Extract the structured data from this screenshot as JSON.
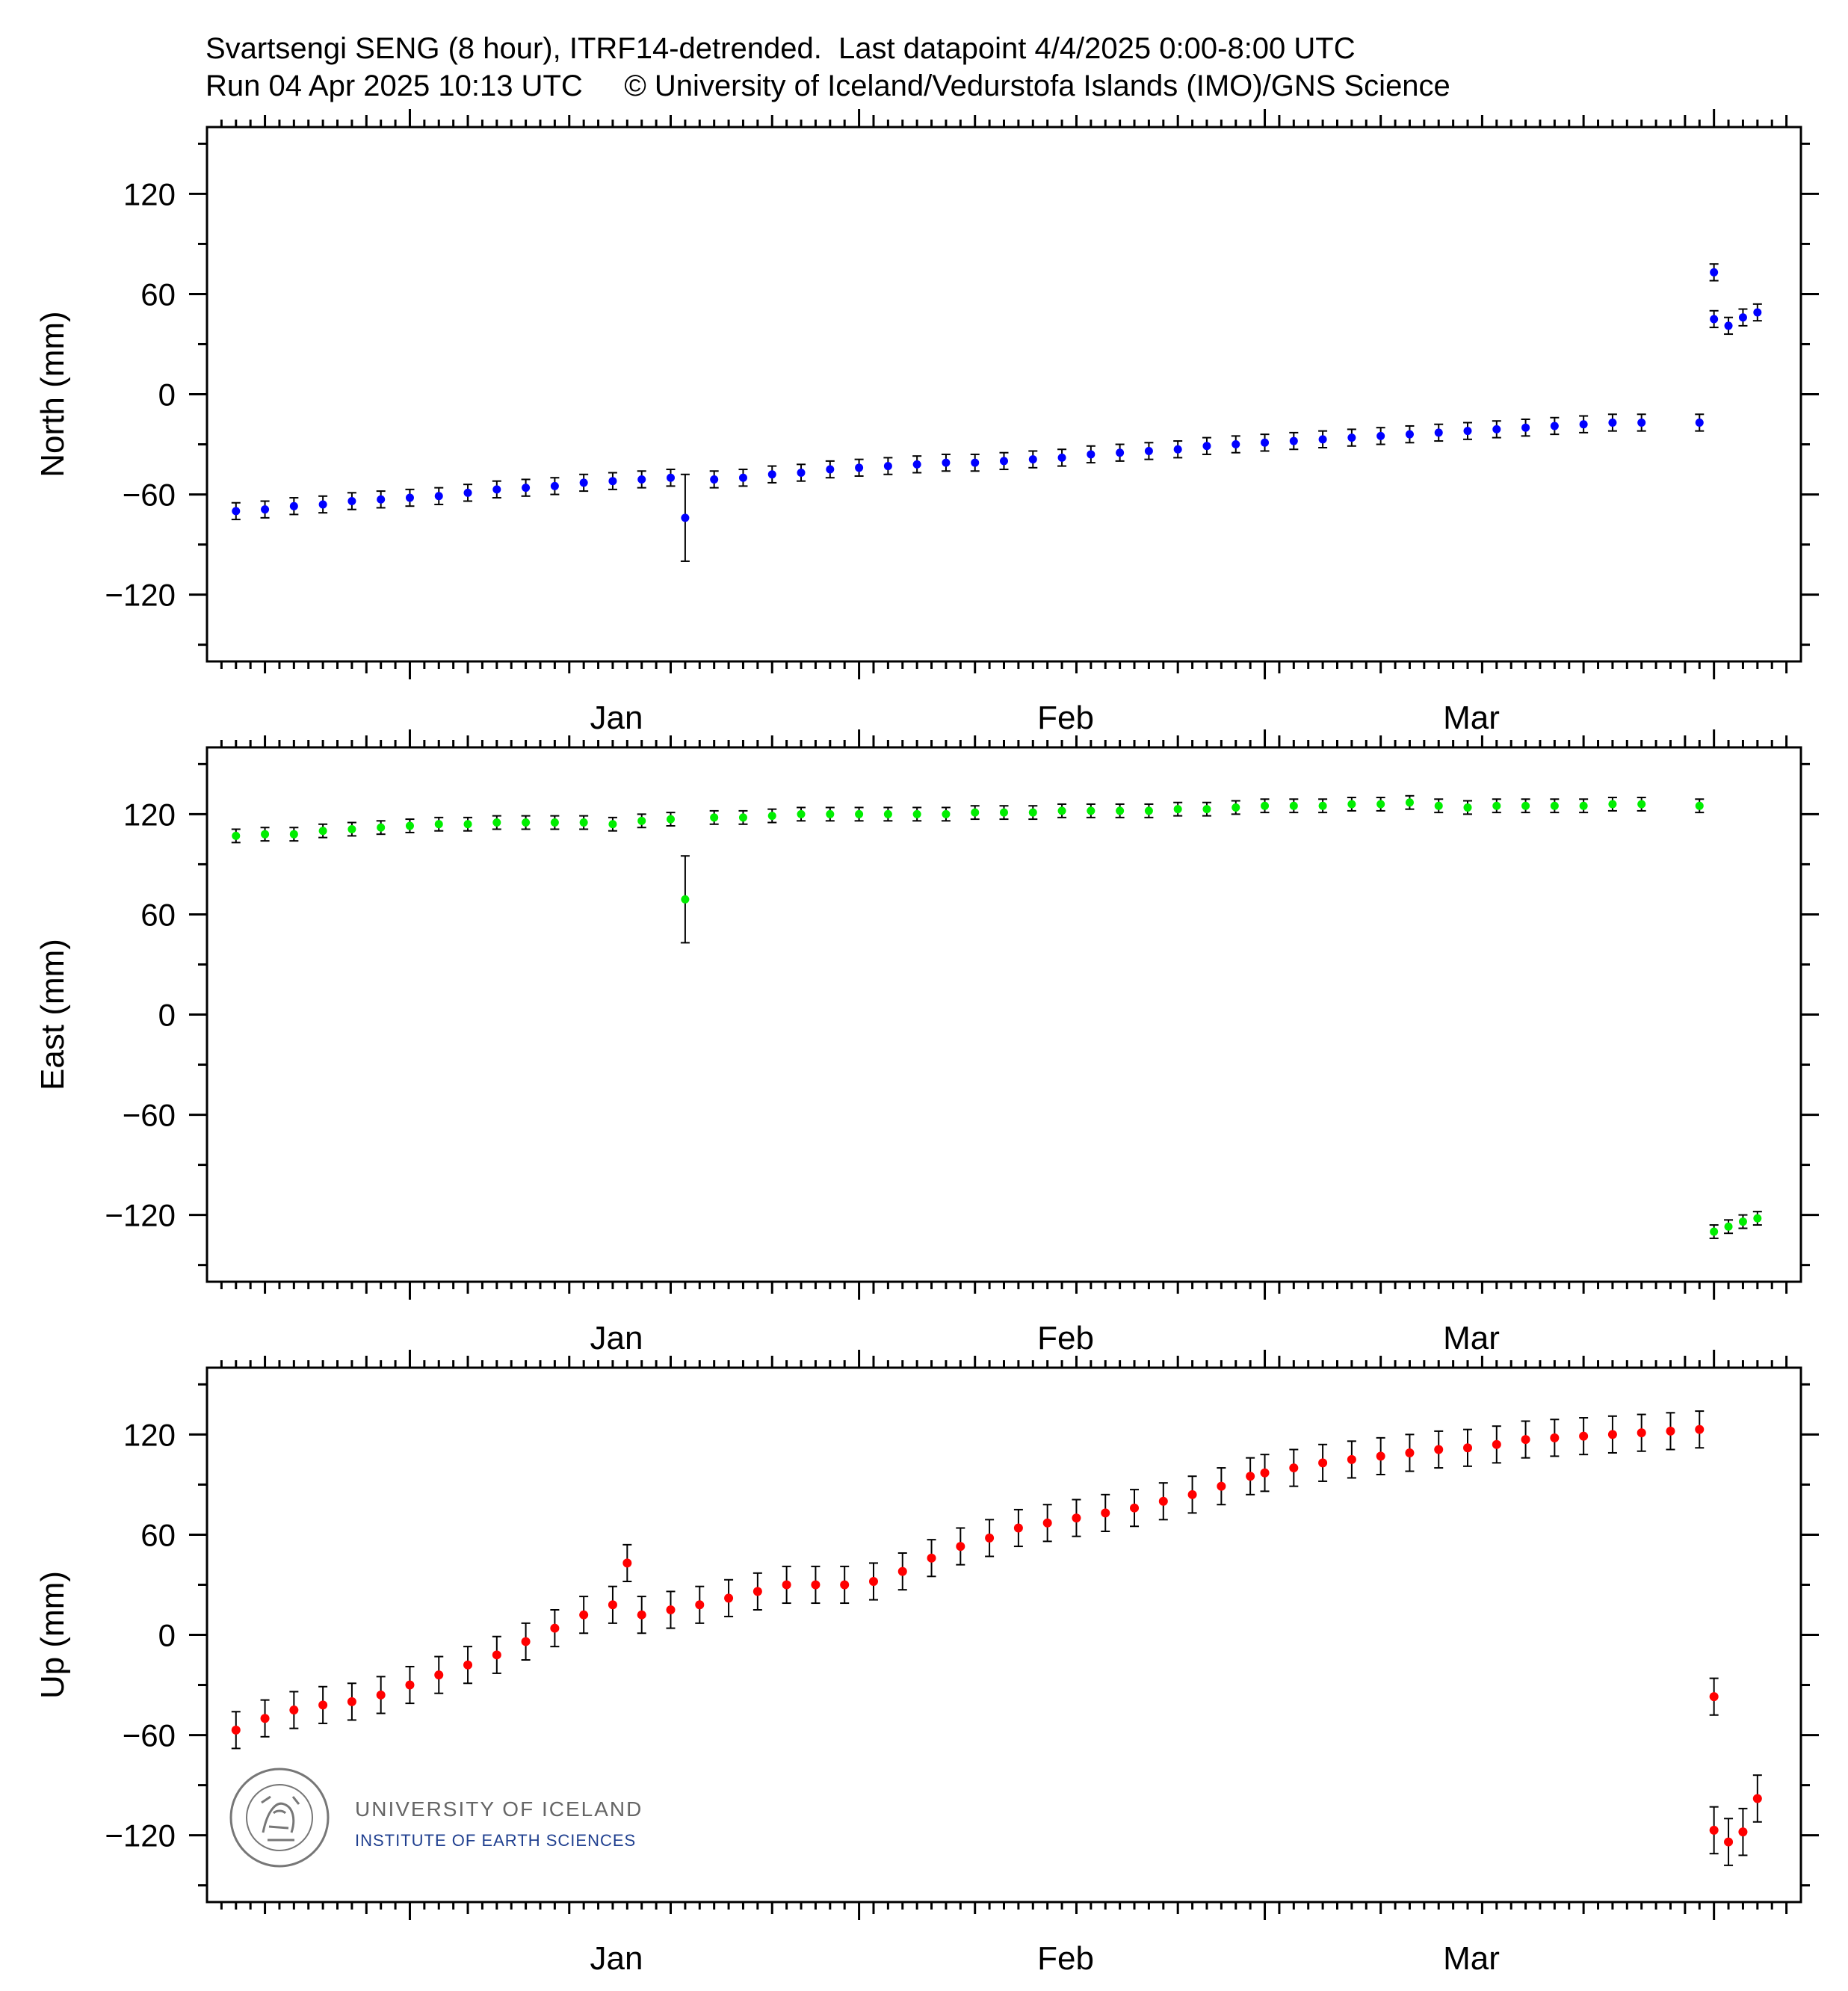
{
  "header": {
    "line1": "Svartsengi SENG (8 hour), ITRF14-detrended.  Last datapoint 4/4/2025 0:00-8:00 UTC",
    "line2": "Run 04 Apr 2025 10:13 UTC     © University of Iceland/Vedurstofa Islands (IMO)/GNS Science"
  },
  "logo": {
    "seal_text": "SIGILLUM UNIVERSITATIS ISLANDIAE",
    "name": "UNIVERSITY OF ICELAND",
    "institute": "INSTITUTE OF EARTH SCIENCES"
  },
  "colors": {
    "north": "#0000ff",
    "east": "#00ee00",
    "up": "#ff0000",
    "errorbar": "#000000",
    "institute_text": "#1f3f8f",
    "name_text": "#666666"
  },
  "chart_data": [
    {
      "type": "scatter",
      "ylabel": "North (mm)",
      "ylim": [
        -160,
        160
      ],
      "yticks": [
        -120,
        -60,
        0,
        60,
        120
      ],
      "xlim": [
        "2024-12-18",
        "2025-04-07"
      ],
      "xtick_labels": [
        {
          "date": "2025-01-01",
          "label": "Jan"
        },
        {
          "date": "2025-02-01",
          "label": "Feb"
        },
        {
          "date": "2025-03-01",
          "label": "Mar"
        }
      ],
      "series": [
        {
          "error_mm": 5,
          "points": [
            [
              "2024-12-20",
              -70
            ],
            [
              "2024-12-22",
              -69
            ],
            [
              "2024-12-24",
              -67
            ],
            [
              "2024-12-26",
              -66
            ],
            [
              "2024-12-28",
              -64
            ],
            [
              "2024-12-30",
              -63
            ],
            [
              "2025-01-01",
              -62
            ],
            [
              "2025-01-03",
              -61
            ],
            [
              "2025-01-05",
              -59
            ],
            [
              "2025-01-07",
              -57
            ],
            [
              "2025-01-09",
              -56
            ],
            [
              "2025-01-11",
              -55
            ],
            [
              "2025-01-13",
              -53
            ],
            [
              "2025-01-15",
              -52
            ],
            [
              "2025-01-17",
              -51
            ],
            [
              "2025-01-19",
              -50
            ],
            [
              "2025-01-20",
              -74
            ],
            [
              "2025-01-22",
              -51
            ],
            [
              "2025-01-24",
              -50
            ],
            [
              "2025-01-26",
              -48
            ],
            [
              "2025-01-28",
              -47
            ],
            [
              "2025-01-30",
              -45
            ],
            [
              "2025-02-01",
              -44
            ],
            [
              "2025-02-03",
              -43
            ],
            [
              "2025-02-05",
              -42
            ],
            [
              "2025-02-07",
              -41
            ],
            [
              "2025-02-09",
              -41
            ],
            [
              "2025-02-11",
              -40
            ],
            [
              "2025-02-13",
              -39
            ],
            [
              "2025-02-15",
              -38
            ],
            [
              "2025-02-17",
              -36
            ],
            [
              "2025-02-19",
              -35
            ],
            [
              "2025-02-21",
              -34
            ],
            [
              "2025-02-23",
              -33
            ],
            [
              "2025-02-25",
              -31
            ],
            [
              "2025-02-27",
              -30
            ],
            [
              "2025-03-01",
              -29
            ],
            [
              "2025-03-03",
              -28
            ],
            [
              "2025-03-05",
              -27
            ],
            [
              "2025-03-07",
              -26
            ],
            [
              "2025-03-09",
              -25
            ],
            [
              "2025-03-11",
              -24
            ],
            [
              "2025-03-13",
              -23
            ],
            [
              "2025-03-15",
              -22
            ],
            [
              "2025-03-17",
              -21
            ],
            [
              "2025-03-19",
              -20
            ],
            [
              "2025-03-21",
              -19
            ],
            [
              "2025-03-23",
              -18
            ],
            [
              "2025-03-25",
              -17
            ],
            [
              "2025-03-27",
              -17
            ],
            [
              "2025-03-31",
              -17
            ],
            [
              "2025-04-01",
              73
            ],
            [
              "2025-04-01",
              45
            ],
            [
              "2025-04-02",
              41
            ],
            [
              "2025-04-03",
              46
            ],
            [
              "2025-04-04",
              49
            ]
          ]
        }
      ]
    },
    {
      "type": "scatter",
      "ylabel": "East (mm)",
      "ylim": [
        -160,
        160
      ],
      "yticks": [
        -120,
        -60,
        0,
        60,
        120
      ],
      "xlim": [
        "2024-12-18",
        "2025-04-07"
      ],
      "xtick_labels": [
        {
          "date": "2025-01-01",
          "label": "Jan"
        },
        {
          "date": "2025-02-01",
          "label": "Feb"
        },
        {
          "date": "2025-03-01",
          "label": "Mar"
        }
      ],
      "series": [
        {
          "error_mm": 4,
          "points": [
            [
              "2024-12-20",
              107
            ],
            [
              "2024-12-22",
              108
            ],
            [
              "2024-12-24",
              108
            ],
            [
              "2024-12-26",
              110
            ],
            [
              "2024-12-28",
              111
            ],
            [
              "2024-12-30",
              112
            ],
            [
              "2025-01-01",
              113
            ],
            [
              "2025-01-03",
              114
            ],
            [
              "2025-01-05",
              114
            ],
            [
              "2025-01-07",
              115
            ],
            [
              "2025-01-09",
              115
            ],
            [
              "2025-01-11",
              115
            ],
            [
              "2025-01-13",
              115
            ],
            [
              "2025-01-15",
              114
            ],
            [
              "2025-01-17",
              116
            ],
            [
              "2025-01-19",
              117
            ],
            [
              "2025-01-20",
              69
            ],
            [
              "2025-01-22",
              118
            ],
            [
              "2025-01-24",
              118
            ],
            [
              "2025-01-26",
              119
            ],
            [
              "2025-01-28",
              120
            ],
            [
              "2025-01-30",
              120
            ],
            [
              "2025-02-01",
              120
            ],
            [
              "2025-02-03",
              120
            ],
            [
              "2025-02-05",
              120
            ],
            [
              "2025-02-07",
              120
            ],
            [
              "2025-02-09",
              121
            ],
            [
              "2025-02-11",
              121
            ],
            [
              "2025-02-13",
              121
            ],
            [
              "2025-02-15",
              122
            ],
            [
              "2025-02-17",
              122
            ],
            [
              "2025-02-19",
              122
            ],
            [
              "2025-02-21",
              122
            ],
            [
              "2025-02-23",
              123
            ],
            [
              "2025-02-25",
              123
            ],
            [
              "2025-02-27",
              124
            ],
            [
              "2025-03-01",
              125
            ],
            [
              "2025-03-03",
              125
            ],
            [
              "2025-03-05",
              125
            ],
            [
              "2025-03-07",
              126
            ],
            [
              "2025-03-09",
              126
            ],
            [
              "2025-03-11",
              127
            ],
            [
              "2025-03-13",
              125
            ],
            [
              "2025-03-15",
              124
            ],
            [
              "2025-03-17",
              125
            ],
            [
              "2025-03-19",
              125
            ],
            [
              "2025-03-21",
              125
            ],
            [
              "2025-03-23",
              125
            ],
            [
              "2025-03-25",
              126
            ],
            [
              "2025-03-27",
              126
            ],
            [
              "2025-03-31",
              125
            ],
            [
              "2025-04-01",
              -130
            ],
            [
              "2025-04-02",
              -127
            ],
            [
              "2025-04-03",
              -124
            ],
            [
              "2025-04-04",
              -122
            ]
          ]
        }
      ]
    },
    {
      "type": "scatter",
      "ylabel": "Up (mm)",
      "ylim": [
        -160,
        160
      ],
      "yticks": [
        -120,
        -60,
        0,
        60,
        120
      ],
      "xlim": [
        "2024-12-18",
        "2025-04-07"
      ],
      "xtick_labels": [
        {
          "date": "2025-01-01",
          "label": "Jan"
        },
        {
          "date": "2025-02-01",
          "label": "Feb"
        },
        {
          "date": "2025-03-01",
          "label": "Mar"
        }
      ],
      "series": [
        {
          "error_mm": 11,
          "points": [
            [
              "2024-12-20",
              -57
            ],
            [
              "2024-12-22",
              -50
            ],
            [
              "2024-12-24",
              -45
            ],
            [
              "2024-12-26",
              -42
            ],
            [
              "2024-12-28",
              -40
            ],
            [
              "2024-12-30",
              -36
            ],
            [
              "2025-01-01",
              -30
            ],
            [
              "2025-01-03",
              -24
            ],
            [
              "2025-01-05",
              -18
            ],
            [
              "2025-01-07",
              -12
            ],
            [
              "2025-01-09",
              -4
            ],
            [
              "2025-01-11",
              4
            ],
            [
              "2025-01-13",
              12
            ],
            [
              "2025-01-15",
              18
            ],
            [
              "2025-01-16",
              43
            ],
            [
              "2025-01-17",
              12
            ],
            [
              "2025-01-19",
              15
            ],
            [
              "2025-01-21",
              18
            ],
            [
              "2025-01-23",
              22
            ],
            [
              "2025-01-25",
              26
            ],
            [
              "2025-01-27",
              30
            ],
            [
              "2025-01-29",
              30
            ],
            [
              "2025-01-31",
              30
            ],
            [
              "2025-02-02",
              32
            ],
            [
              "2025-02-04",
              38
            ],
            [
              "2025-02-06",
              46
            ],
            [
              "2025-02-08",
              53
            ],
            [
              "2025-02-10",
              58
            ],
            [
              "2025-02-12",
              64
            ],
            [
              "2025-02-14",
              67
            ],
            [
              "2025-02-16",
              70
            ],
            [
              "2025-02-18",
              73
            ],
            [
              "2025-02-20",
              76
            ],
            [
              "2025-02-22",
              80
            ],
            [
              "2025-02-24",
              84
            ],
            [
              "2025-02-26",
              89
            ],
            [
              "2025-02-28",
              95
            ],
            [
              "2025-03-01",
              97
            ],
            [
              "2025-03-03",
              100
            ],
            [
              "2025-03-05",
              103
            ],
            [
              "2025-03-07",
              105
            ],
            [
              "2025-03-09",
              107
            ],
            [
              "2025-03-11",
              109
            ],
            [
              "2025-03-13",
              111
            ],
            [
              "2025-03-15",
              112
            ],
            [
              "2025-03-17",
              114
            ],
            [
              "2025-03-19",
              117
            ],
            [
              "2025-03-21",
              118
            ],
            [
              "2025-03-23",
              119
            ],
            [
              "2025-03-25",
              120
            ],
            [
              "2025-03-27",
              121
            ],
            [
              "2025-03-29",
              122
            ],
            [
              "2025-03-31",
              123
            ],
            [
              "2025-04-01",
              -37
            ],
            [
              "2025-04-01",
              -117
            ],
            [
              "2025-04-02",
              -124
            ],
            [
              "2025-04-03",
              -118
            ],
            [
              "2025-04-04",
              -98
            ]
          ]
        }
      ]
    }
  ]
}
